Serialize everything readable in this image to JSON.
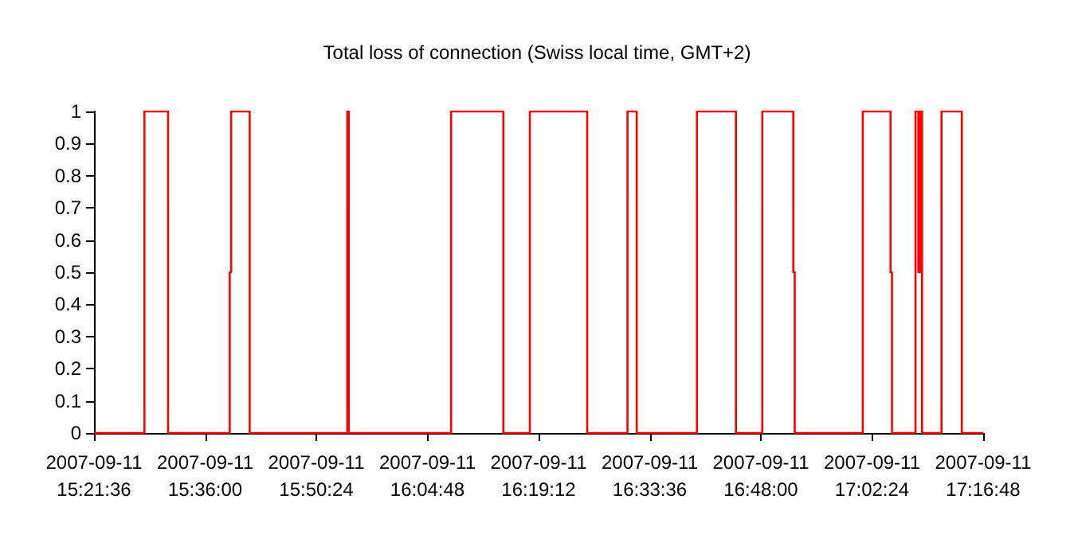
{
  "chart_data": {
    "type": "step",
    "title": "Total loss of connection (Swiss local time, GMT+2)",
    "x": [
      "2007-09-11T15:21:36",
      "2007-09-11T15:28:08",
      "2007-09-11T15:31:12",
      "2007-09-11T15:39:11",
      "2007-09-11T15:39:22",
      "2007-09-11T15:41:46",
      "2007-09-11T15:54:25",
      "2007-09-11T15:54:36",
      "2007-09-11T16:07:52",
      "2007-09-11T16:14:38",
      "2007-09-11T16:18:04",
      "2007-09-11T16:25:30",
      "2007-09-11T16:30:43",
      "2007-09-11T16:31:55",
      "2007-09-11T16:39:43",
      "2007-09-11T16:44:46",
      "2007-09-11T16:48:11",
      "2007-09-11T16:52:12",
      "2007-09-11T16:52:23",
      "2007-09-11T17:01:12",
      "2007-09-11T17:04:48",
      "2007-09-11T17:04:59",
      "2007-09-11T17:08:02",
      "2007-09-11T17:08:24",
      "2007-09-11T17:08:38",
      "2007-09-11T17:08:53",
      "2007-09-11T17:11:24",
      "2007-09-11T17:14:02",
      "2007-09-11T17:16:48"
    ],
    "series": [
      {
        "color": "#ff0000",
        "values": [
          0,
          1,
          0,
          0.5,
          1,
          0,
          1,
          0,
          1,
          0,
          1,
          0,
          1,
          0,
          1,
          0,
          1,
          0.5,
          0,
          1,
          0.5,
          0,
          1,
          0.5,
          1,
          0,
          1,
          0,
          0
        ]
      }
    ],
    "xlim": [
      "2007-09-11T15:21:36",
      "2007-09-11T17:16:48"
    ],
    "xticks": [
      {
        "value": "2007-09-11T15:21:36",
        "label": "2007-09-11 15:21:36"
      },
      {
        "value": "2007-09-11T15:36:00",
        "label": "2007-09-11 15:36:00"
      },
      {
        "value": "2007-09-11T15:50:24",
        "label": "2007-09-11 15:50:24"
      },
      {
        "value": "2007-09-11T16:04:48",
        "label": "2007-09-11 16:04:48"
      },
      {
        "value": "2007-09-11T16:19:12",
        "label": "2007-09-11 16:19:12"
      },
      {
        "value": "2007-09-11T16:33:36",
        "label": "2007-09-11 16:33:36"
      },
      {
        "value": "2007-09-11T16:48:00",
        "label": "2007-09-11 16:48:00"
      },
      {
        "value": "2007-09-11T17:02:24",
        "label": "2007-09-11 17:02:24"
      },
      {
        "value": "2007-09-11T17:16:48",
        "label": "2007-09-11 17:16:48"
      }
    ],
    "ylim": [
      0,
      1
    ],
    "yticks": [
      0,
      0.1,
      0.2,
      0.3,
      0.4,
      0.5,
      0.6,
      0.7,
      0.8,
      0.9,
      1
    ],
    "grid": false,
    "marker": "none",
    "line_style": "solid"
  }
}
